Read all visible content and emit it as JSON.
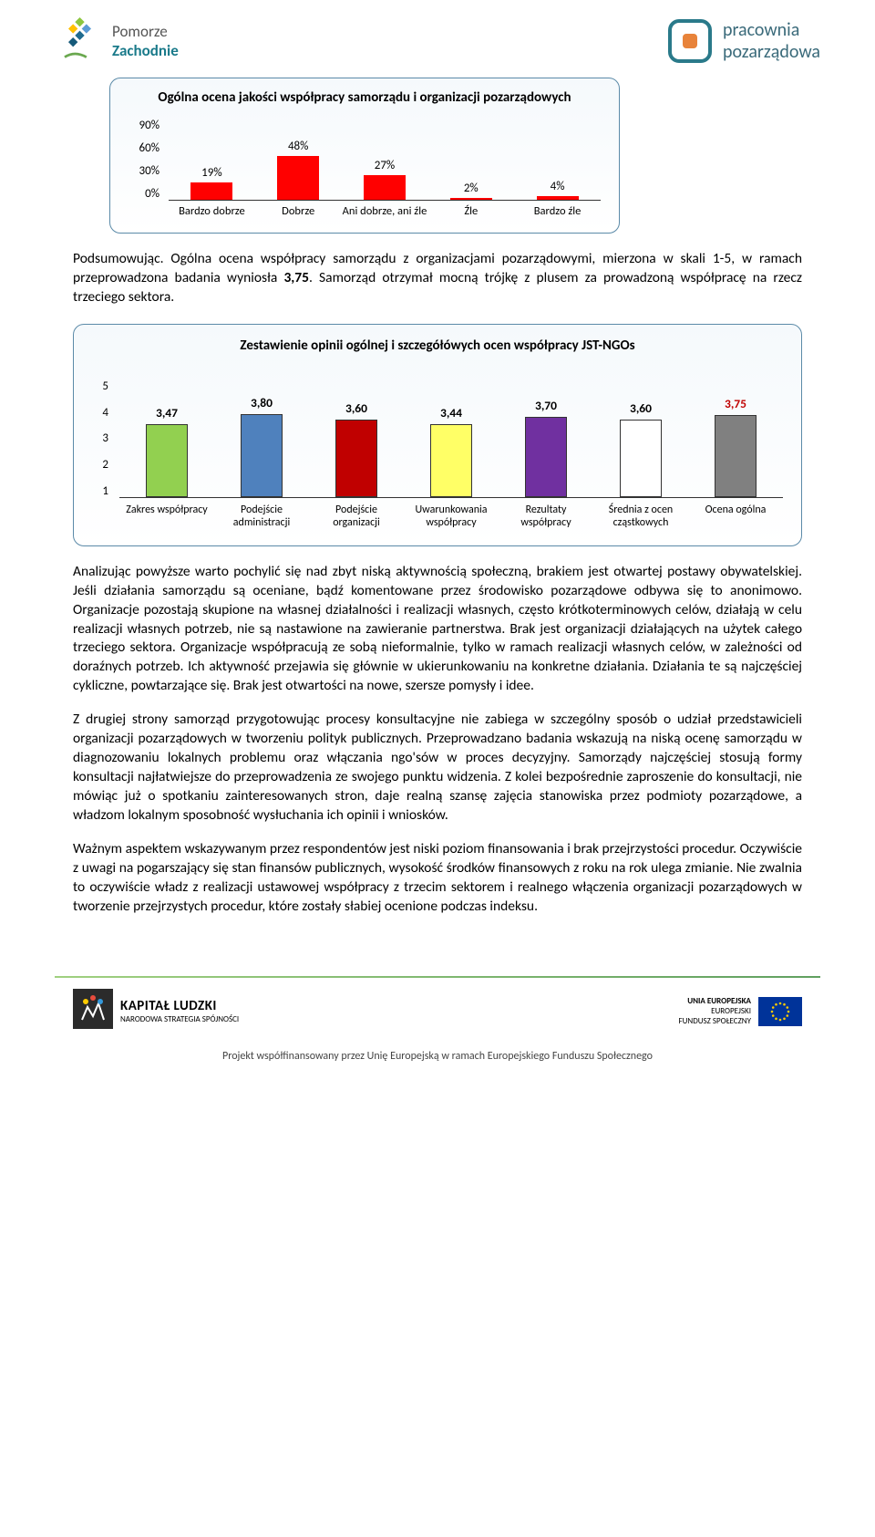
{
  "header": {
    "logo_left_text1": "Pomorze",
    "logo_left_text2": "Zachodnie",
    "logo_right_text1": "pracownia",
    "logo_right_text2": "pozarządowa"
  },
  "chart1": {
    "title": "Ogólna ocena jakości współpracy samorządu i organizacji pozarządowych",
    "type": "bar",
    "ymax": 90,
    "yticks": [
      "90%",
      "60%",
      "30%",
      "0%"
    ],
    "categories": [
      "Bardzo dobrze",
      "Dobrze",
      "Ani dobrze, ani źle",
      "Źle",
      "Bardzo źle"
    ],
    "values": [
      19,
      48,
      27,
      2,
      4
    ],
    "value_labels": [
      "19%",
      "48%",
      "27%",
      "2%",
      "4%"
    ],
    "bar_color": "#ff0000",
    "background_color": "#ffffff"
  },
  "para1": "Podsumowując. Ogólna ocena współpracy samorządu z organizacjami pozarządowymi, mierzona w skali 1-5, w ramach przeprowadzona badania wyniosła 3,75. Samorząd otrzymał mocną trójkę z plusem za prowadzoną współpracę na rzecz trzeciego sektora.",
  "bold_score": "3,75",
  "chart2": {
    "title": "Zestawienie opinii ogólnej i szczegółówych ocen współpracy JST-NGOs",
    "type": "bar",
    "ymin": 1,
    "ymax": 5,
    "yticks": [
      "5",
      "4",
      "3",
      "2",
      "1"
    ],
    "categories": [
      "Zakres współpracy",
      "Podejście administracji",
      "Podejście organizacji",
      "Uwarunkowania współpracy",
      "Rezultaty współpracy",
      "Średnia z ocen cząstkowych",
      "Ocena ogólna"
    ],
    "values": [
      3.47,
      3.8,
      3.6,
      3.44,
      3.7,
      3.6,
      3.75
    ],
    "value_labels": [
      "3,47",
      "3,80",
      "3,60",
      "3,44",
      "3,70",
      "3,60",
      "3,75"
    ],
    "bar_colors": [
      "#92d050",
      "#4f81bd",
      "#c00000",
      "#ffff66",
      "#7030a0",
      "hatched",
      "#808080"
    ],
    "value_colors": [
      "#000000",
      "#000000",
      "#000000",
      "#000000",
      "#000000",
      "#000000",
      "#c00000"
    ],
    "bar_border": "#333333"
  },
  "para2": "Analizując powyższe warto pochylić się nad zbyt niską aktywnością społeczną, brakiem jest otwartej postawy obywatelskiej. Jeśli działania samorządu są oceniane, bądź komentowane przez środowisko pozarządowe odbywa się to anonimowo. Organizacje pozostają skupione na własnej działalności i realizacji własnych, często krótkoterminowych celów, działają w celu realizacji własnych potrzeb, nie są nastawione na zawieranie partnerstwa. Brak jest organizacji działających na użytek całego trzeciego sektora. Organizacje współpracują ze sobą nieformalnie, tylko w ramach realizacji własnych celów, w zależności od doraźnych potrzeb. Ich aktywność przejawia się głównie w ukierunkowaniu na konkretne działania. Działania te są najczęściej cykliczne, powtarzające się. Brak jest otwartości na nowe, szersze pomysły i idee.",
  "para3": "Z drugiej strony samorząd przygotowując procesy konsultacyjne nie zabiega w szczególny sposób o udział przedstawicieli organizacji pozarządowych w tworzeniu polityk publicznych. Przeprowadzano badania wskazują na niską ocenę samorządu w diagnozowaniu lokalnych problemu oraz włączania ngo'sów w proces decyzyjny. Samorządy najczęściej stosują formy konsultacji najłatwiejsze do przeprowadzenia ze swojego punktu widzenia. Z kolei bezpośrednie zaproszenie do konsultacji, nie mówiąc już o spotkaniu zainteresowanych stron, daje realną szansę zajęcia stanowiska przez podmioty pozarządowe, a władzom lokalnym sposobność wysłuchania ich opinii i wniosków.",
  "para4": "Ważnym aspektem wskazywanym przez respondentów jest niski poziom finansowania i brak przejrzystości procedur. Oczywiście z uwagi na pogarszający się stan finansów publicznych, wysokość środków finansowych z roku na rok ulega zmianie. Nie zwalnia to oczywiście władz z realizacji ustawowej współpracy z trzecim sektorem i realnego włączenia organizacji pozarządowych w tworzenie przejrzystych procedur, które zostały słabiej ocenione podczas indeksu.",
  "footer": {
    "kl_title": "KAPITAŁ LUDZKI",
    "kl_sub": "NARODOWA STRATEGIA SPÓJNOŚCI",
    "eu_l1": "UNIA EUROPEJSKA",
    "eu_l2": "EUROPEJSKI",
    "eu_l3": "FUNDUSZ SPOŁECZNY",
    "bottom_line": "Projekt współfinansowany przez Unię Europejską w ramach Europejskiego Funduszu Społecznego"
  }
}
